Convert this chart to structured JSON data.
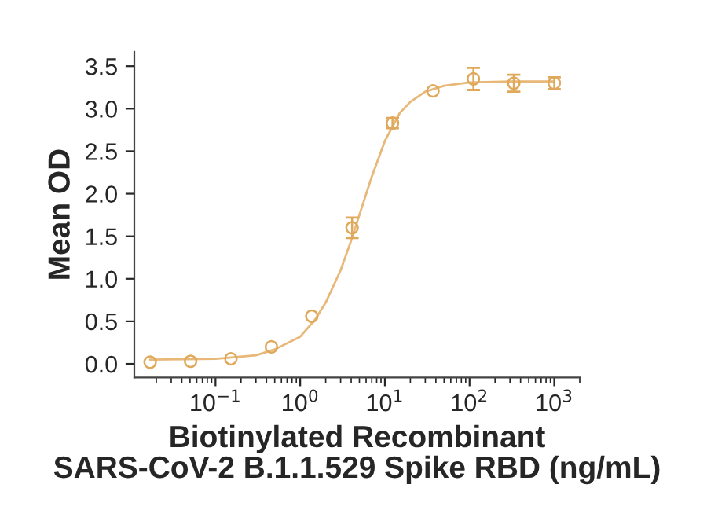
{
  "chart_data": {
    "type": "scatter",
    "xlabel": "Biotinylated Recombinant\nSARS-CoV-2 B.1.1.529 Spike RBD (ng/mL)",
    "ylabel": "Mean OD",
    "log": "x",
    "xlim": [
      0.011,
      2000
    ],
    "xticks": [
      {
        "value": 0.1,
        "label": "10$^{−1}$"
      },
      {
        "value": 1,
        "label": "10$^{0}$"
      },
      {
        "value": 10,
        "label": "10$^{1}$"
      },
      {
        "value": 100,
        "label": "10$^{2}$"
      },
      {
        "value": 1000,
        "label": "10$^{3}$"
      }
    ],
    "ylim": [
      -0.16,
      3.67
    ],
    "yticks": [
      {
        "value": 0,
        "label": "0.0"
      },
      0.5,
      {
        "value": 1,
        "label": "1.0"
      },
      1.5,
      {
        "value": 2,
        "label": "2.0"
      },
      2.5,
      {
        "value": 3,
        "label": "3.0"
      },
      3.5
    ],
    "grid": false,
    "legend": false,
    "series": [
      {
        "marker": "circle",
        "color": "#e0a85a",
        "x": [
          0.0169,
          0.0508,
          0.152,
          0.457,
          1.37,
          4.1,
          12.3,
          37,
          111,
          333,
          1000
        ],
        "values": [
          0.02,
          0.03,
          0.06,
          0.2,
          0.56,
          1.6,
          2.83,
          3.21,
          3.35,
          3.3,
          3.3
        ],
        "errors": [
          null,
          null,
          null,
          null,
          null,
          0.12,
          0.06,
          null,
          0.13,
          0.1,
          0.07
        ]
      },
      {
        "type": "line",
        "marker": "none",
        "line_style": "solid",
        "color": "#e8b878",
        "x": [
          0.0169,
          0.1,
          0.3,
          0.5,
          1,
          1.5,
          2,
          3,
          4,
          5,
          7,
          10,
          15,
          20,
          30,
          50,
          100,
          300,
          1000
        ],
        "values": [
          0.05,
          0.06,
          0.1,
          0.17,
          0.32,
          0.52,
          0.72,
          1.1,
          1.45,
          1.75,
          2.2,
          2.62,
          2.95,
          3.08,
          3.2,
          3.27,
          3.31,
          3.32,
          3.32
        ]
      }
    ]
  }
}
